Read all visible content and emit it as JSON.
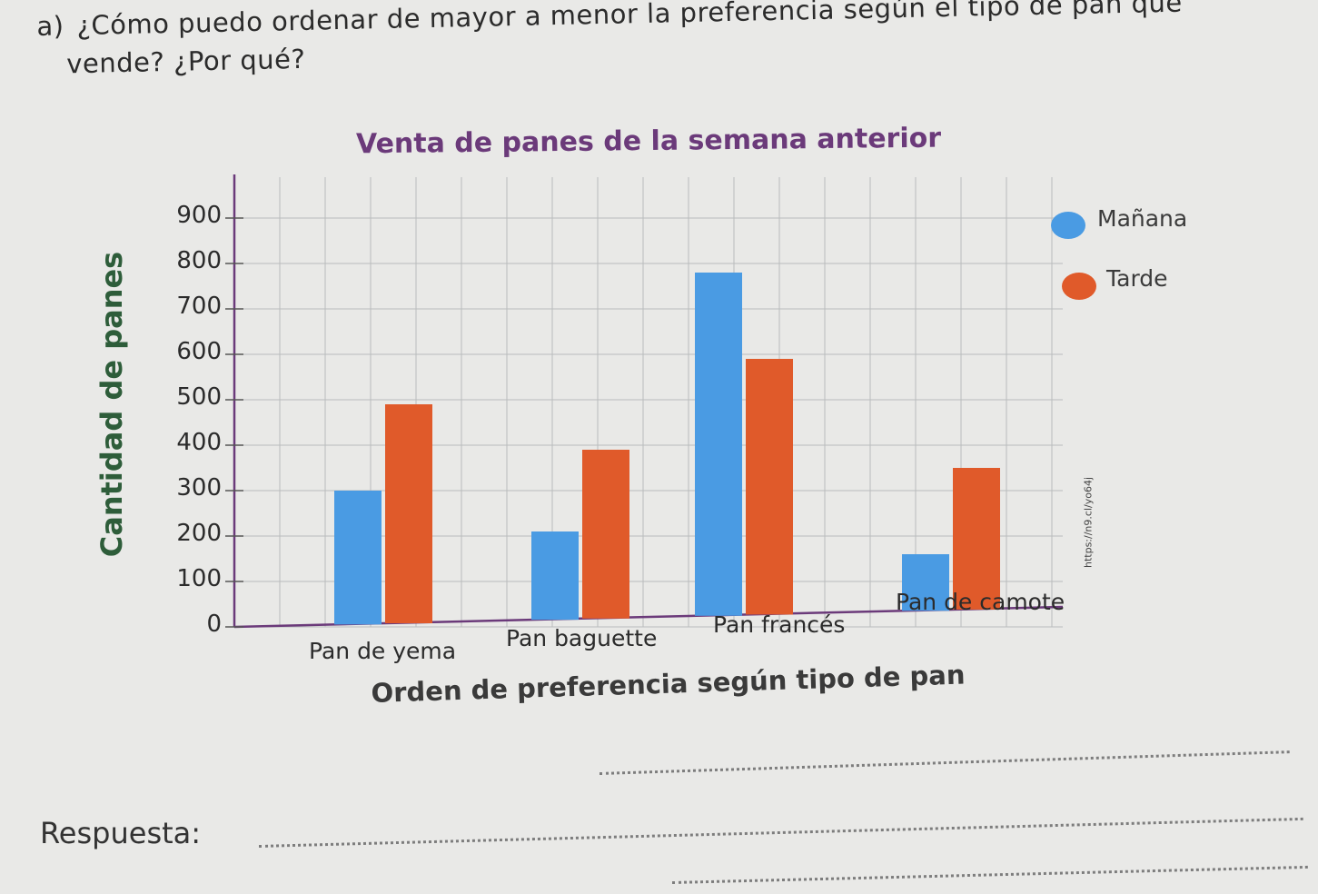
{
  "question": {
    "letter": "a)",
    "line1": "¿Cómo puedo ordenar de mayor a menor la preferencia según el tipo de pan que",
    "line2": "vende? ¿Por qué?"
  },
  "answer_label": "Respuesta:",
  "answer_heading": "Orden de preferencia según tipo de pan",
  "source_url": "https://n9.cl/yo64j",
  "colors": {
    "manana": "#4a9be3",
    "tarde": "#e05a2a",
    "grid": "#b9bcbc",
    "axis": "#6b3a7a"
  },
  "chart_data": {
    "type": "bar",
    "title": "Venta de panes de la semana anterior",
    "ylabel": "Cantidad de panes",
    "xlabel": "",
    "ylim": [
      0,
      900
    ],
    "yticks": [
      "0",
      "100",
      "200",
      "300",
      "400",
      "500",
      "600",
      "700",
      "800",
      "900"
    ],
    "categories": [
      "Pan de yema",
      "Pan baguette",
      "Pan francés",
      "Pan de camote"
    ],
    "series": [
      {
        "name": "Mañana",
        "color": "#4a9be3",
        "values": [
          300,
          210,
          780,
          160
        ]
      },
      {
        "name": "Tarde",
        "color": "#e05a2a",
        "values": [
          490,
          390,
          590,
          350
        ]
      }
    ],
    "legend_position": "top-right",
    "grid": true
  }
}
